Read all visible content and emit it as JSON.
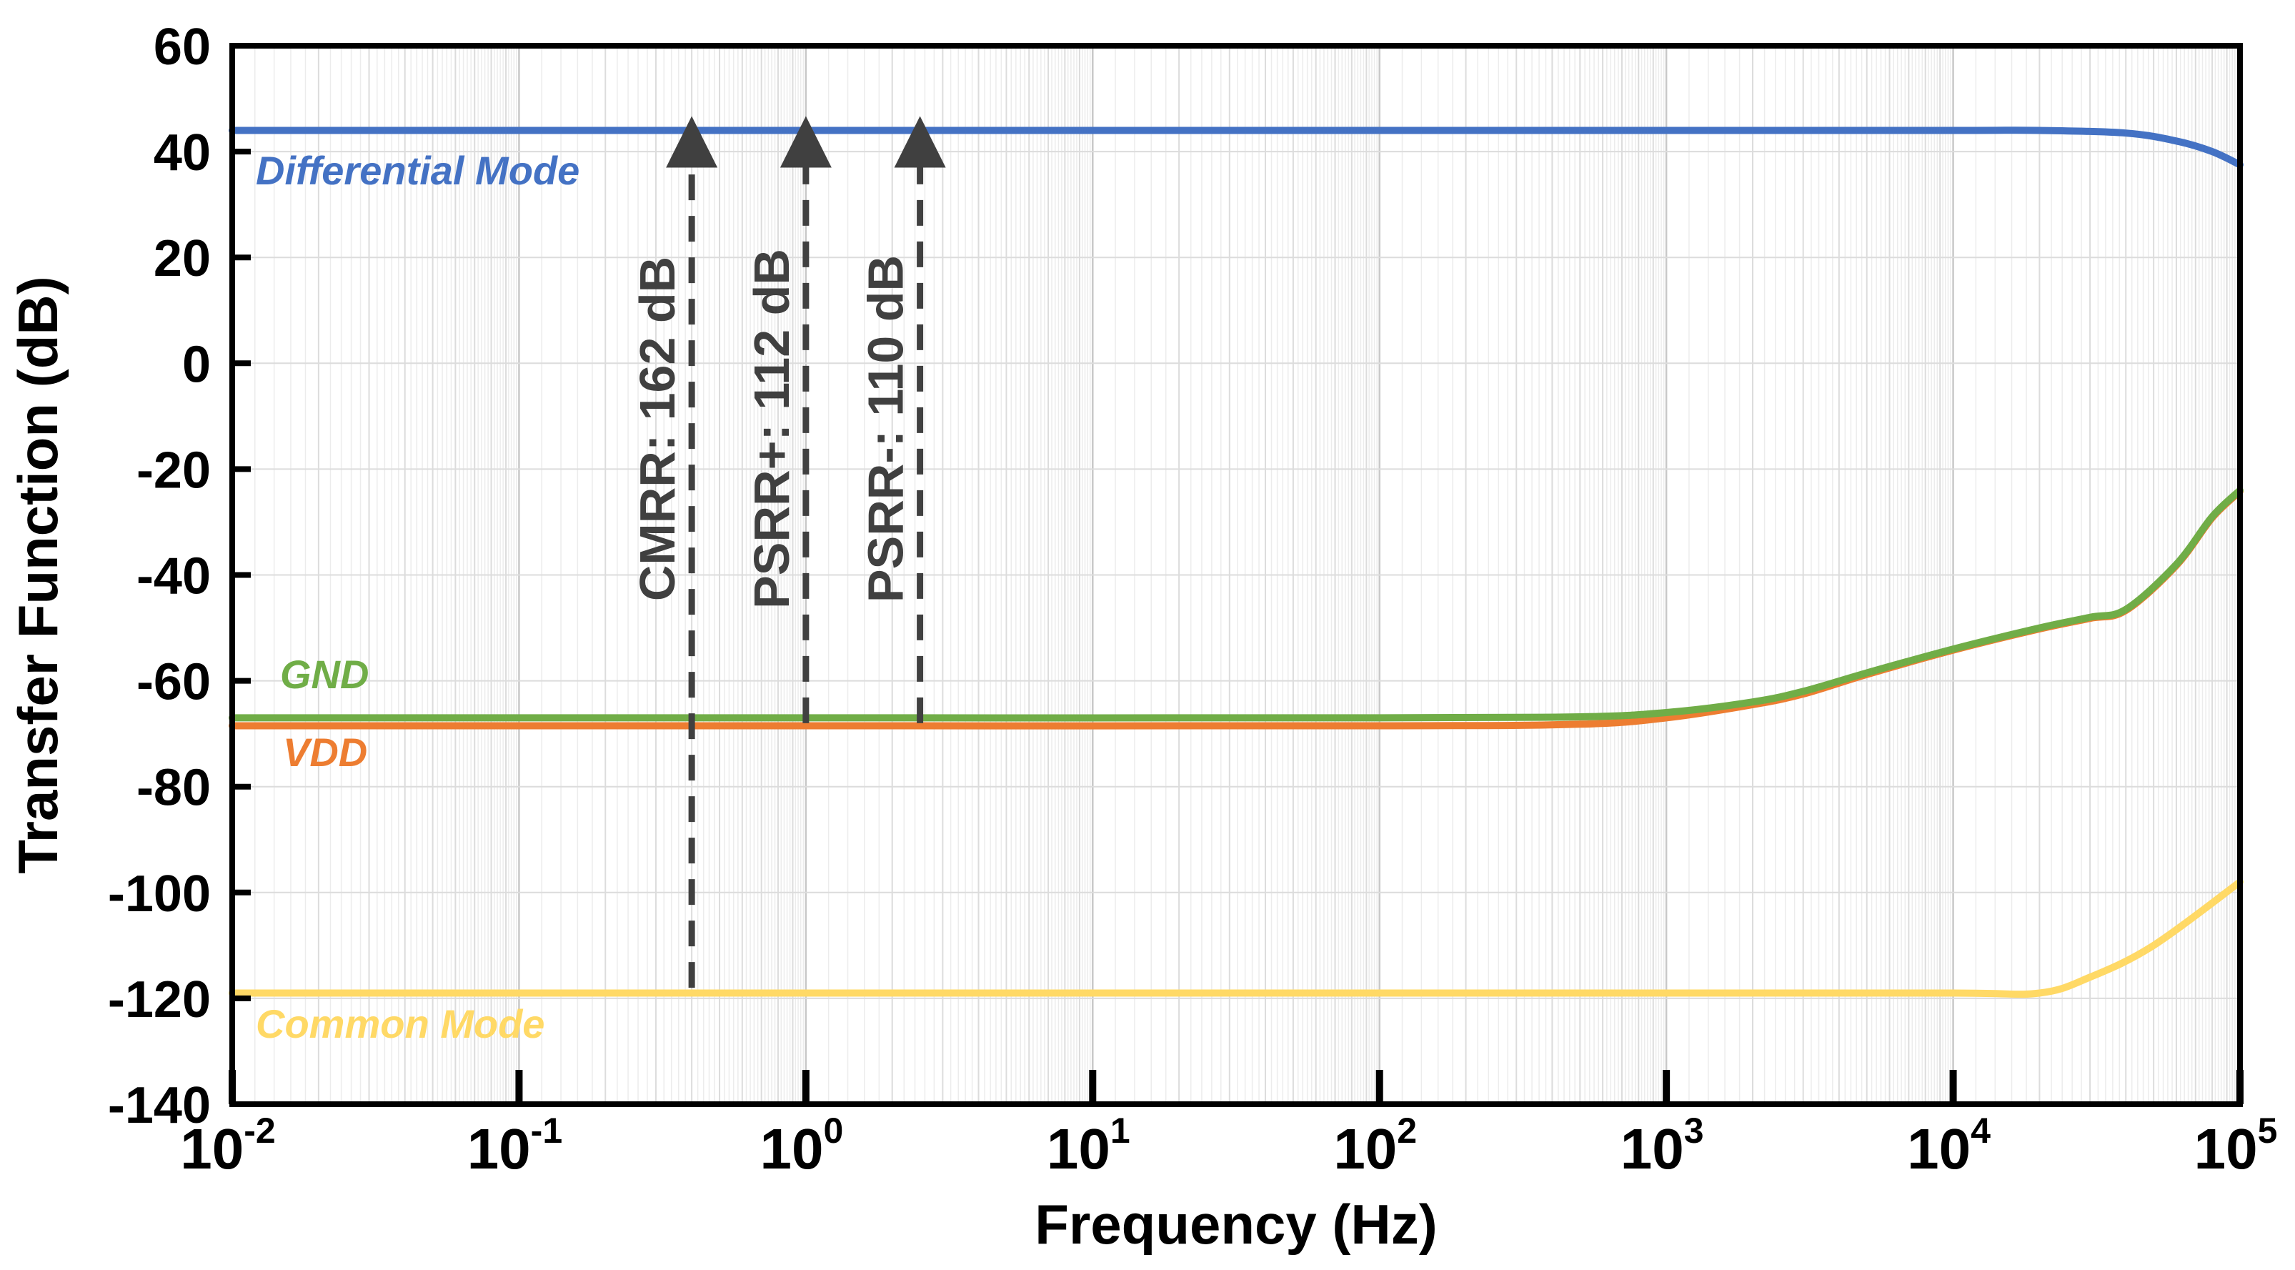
{
  "chart_data": {
    "type": "line",
    "xlabel": "Frequency (Hz)",
    "ylabel": "Transfer Function (dB)",
    "xscale": "log",
    "xlim": [
      0.01,
      100000
    ],
    "ylim": [
      -140,
      60
    ],
    "yticks": [
      60,
      40,
      20,
      0,
      -20,
      -40,
      -60,
      -80,
      -100,
      -120,
      -140
    ],
    "xticks": [
      {
        "base": "10",
        "exp": "-2"
      },
      {
        "base": "10",
        "exp": "-1"
      },
      {
        "base": "10",
        "exp": "0"
      },
      {
        "base": "10",
        "exp": "1"
      },
      {
        "base": "10",
        "exp": "2"
      },
      {
        "base": "10",
        "exp": "3"
      },
      {
        "base": "10",
        "exp": "4"
      },
      {
        "base": "10",
        "exp": "5"
      }
    ],
    "grid": true,
    "series": [
      {
        "name": "Differential Mode",
        "color": "#4472C4",
        "x": [
          0.01,
          1,
          100,
          1000,
          10000,
          20000,
          40000,
          60000,
          80000,
          100000
        ],
        "y": [
          44,
          44,
          44,
          44,
          44,
          44,
          43.5,
          42,
          40,
          37.5
        ]
      },
      {
        "name": "GND",
        "color": "#70AD47",
        "x": [
          0.01,
          1,
          100,
          500,
          1000,
          2000,
          3000,
          5000,
          10000,
          20000,
          30000,
          40000,
          60000,
          80000,
          100000
        ],
        "y": [
          -67,
          -67,
          -67,
          -66.8,
          -66,
          -64,
          -62,
          -58.5,
          -54,
          -50,
          -48,
          -46.5,
          -38,
          -29,
          -24
        ]
      },
      {
        "name": "VDD",
        "color": "#ED7D31",
        "x": [
          0.01,
          1,
          100,
          500,
          1000,
          2000,
          3000,
          5000,
          10000,
          20000,
          30000,
          40000,
          60000,
          80000,
          100000
        ],
        "y": [
          -68.5,
          -68.5,
          -68.5,
          -68.2,
          -67,
          -64.5,
          -62.5,
          -58.8,
          -54.2,
          -50.2,
          -48.2,
          -46.7,
          -38.2,
          -29.2,
          -24.2
        ]
      },
      {
        "name": "Common Mode",
        "color": "#FFD966",
        "x": [
          0.01,
          1,
          100,
          1000,
          10000,
          20000,
          30000,
          50000,
          100000
        ],
        "y": [
          -119,
          -119,
          -119,
          -119,
          -119,
          -119,
          -116,
          -110,
          -98
        ]
      }
    ],
    "annotations": [
      {
        "text": "CMRR: 162 dB",
        "x": 0.4,
        "y_from": -118,
        "y_to": 44
      },
      {
        "text": "PSRR+: 112 dB",
        "x": 1,
        "y_from": -68,
        "y_to": 44
      },
      {
        "text": "PSRR-: 110 dB",
        "x": 2.5,
        "y_from": -68,
        "y_to": 44
      }
    ]
  }
}
